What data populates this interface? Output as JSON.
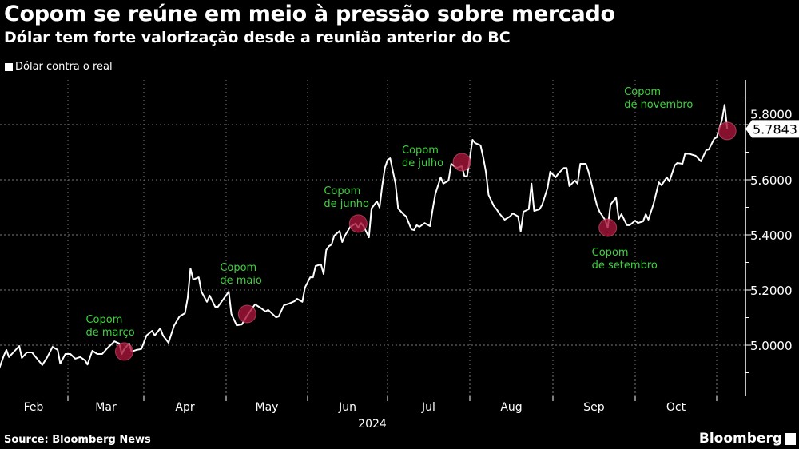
{
  "header": {
    "title": "Copom se reúne em meio à pressão sobre mercado",
    "subtitle": "Dólar tem forte valorização desde a reunião anterior do BC"
  },
  "footer": {
    "source": "Source: Bloomberg News",
    "logo": "Bloomberg"
  },
  "chart_data": {
    "type": "line",
    "title": "Copom se reúne em meio à pressão sobre mercado",
    "subtitle": "Dólar tem forte valorização desde a reunião anterior do BC",
    "xlabel": "2024",
    "ylabel": "",
    "ylim": [
      4.85,
      5.95
    ],
    "y_ticks": [
      "5.0000",
      "5.2000",
      "5.4000",
      "5.6000",
      "5.8000"
    ],
    "x_ticks": [
      "Feb",
      "Mar",
      "Apr",
      "May",
      "Jun",
      "Jul",
      "Aug",
      "Sep",
      "Oct"
    ],
    "x_year_label": "2024",
    "grid": true,
    "legend_position": "top-left",
    "last_value_label": "5.7843",
    "colors": {
      "line": "#ffffff",
      "annotation_text": "#3fd23f",
      "marker": "#a8153a",
      "background": "#000000"
    },
    "series": [
      {
        "name": "Dólar contra o real",
        "points": [
          [
            "2024-02-03",
            4.91
          ],
          [
            "2024-02-05",
            4.962
          ],
          [
            "2024-02-06",
            4.983
          ],
          [
            "2024-02-07",
            4.957
          ],
          [
            "2024-02-09",
            4.977
          ],
          [
            "2024-02-11",
            4.997
          ],
          [
            "2024-02-12",
            4.954
          ],
          [
            "2024-02-14",
            4.974
          ],
          [
            "2024-02-16",
            4.974
          ],
          [
            "2024-02-17",
            4.962
          ],
          [
            "2024-02-20",
            4.928
          ],
          [
            "2024-02-22",
            4.957
          ],
          [
            "2024-02-24",
            4.994
          ],
          [
            "2024-02-26",
            4.983
          ],
          [
            "2024-02-27",
            4.933
          ],
          [
            "2024-02-29",
            4.968
          ],
          [
            "2024-03-02",
            4.968
          ],
          [
            "2024-03-04",
            4.951
          ],
          [
            "2024-03-06",
            4.957
          ],
          [
            "2024-03-08",
            4.945
          ],
          [
            "2024-03-09",
            4.93
          ],
          [
            "2024-03-11",
            4.98
          ],
          [
            "2024-03-13",
            4.968
          ],
          [
            "2024-03-15",
            4.968
          ],
          [
            "2024-03-17",
            4.988
          ],
          [
            "2024-03-20",
            5.014
          ],
          [
            "2024-03-22",
            5.006
          ],
          [
            "2024-03-23",
            4.968
          ],
          [
            "2024-03-24",
            4.986
          ],
          [
            "2024-03-26",
            5.006
          ],
          [
            "2024-03-27",
            4.977
          ],
          [
            "2024-03-29",
            4.983
          ],
          [
            "2024-03-31",
            4.986
          ],
          [
            "2024-04-02",
            5.035
          ],
          [
            "2024-04-04",
            5.052
          ],
          [
            "2024-04-05",
            5.035
          ],
          [
            "2024-04-07",
            5.061
          ],
          [
            "2024-04-08",
            5.035
          ],
          [
            "2024-04-10",
            5.009
          ],
          [
            "2024-04-12",
            5.07
          ],
          [
            "2024-04-14",
            5.104
          ],
          [
            "2024-04-16",
            5.116
          ],
          [
            "2024-04-17",
            5.171
          ],
          [
            "2024-04-18",
            5.278
          ],
          [
            "2024-04-19",
            5.238
          ],
          [
            "2024-04-21",
            5.246
          ],
          [
            "2024-04-22",
            5.194
          ],
          [
            "2024-04-24",
            5.157
          ],
          [
            "2024-04-25",
            5.18
          ],
          [
            "2024-04-27",
            5.139
          ],
          [
            "2024-04-28",
            5.139
          ],
          [
            "2024-05-02",
            5.194
          ],
          [
            "2024-05-03",
            5.113
          ],
          [
            "2024-05-05",
            5.072
          ],
          [
            "2024-05-07",
            5.075
          ],
          [
            "2024-05-09",
            5.107
          ],
          [
            "2024-05-12",
            5.148
          ],
          [
            "2024-05-14",
            5.136
          ],
          [
            "2024-05-16",
            5.122
          ],
          [
            "2024-05-17",
            5.128
          ],
          [
            "2024-05-20",
            5.101
          ],
          [
            "2024-05-21",
            5.104
          ],
          [
            "2024-05-23",
            5.145
          ],
          [
            "2024-05-25",
            5.151
          ],
          [
            "2024-05-27",
            5.159
          ],
          [
            "2024-05-28",
            5.168
          ],
          [
            "2024-05-30",
            5.157
          ],
          [
            "2024-05-31",
            5.209
          ],
          [
            "2024-06-02",
            5.246
          ],
          [
            "2024-06-03",
            5.246
          ],
          [
            "2024-06-04",
            5.287
          ],
          [
            "2024-06-06",
            5.293
          ],
          [
            "2024-06-07",
            5.258
          ],
          [
            "2024-06-08",
            5.345
          ],
          [
            "2024-06-09",
            5.359
          ],
          [
            "2024-06-10",
            5.365
          ],
          [
            "2024-06-11",
            5.397
          ],
          [
            "2024-06-13",
            5.414
          ],
          [
            "2024-06-14",
            5.374
          ],
          [
            "2024-06-15",
            5.397
          ],
          [
            "2024-06-17",
            5.429
          ],
          [
            "2024-06-19",
            5.441
          ],
          [
            "2024-06-20",
            5.426
          ],
          [
            "2024-06-21",
            5.443
          ],
          [
            "2024-06-22",
            5.432
          ],
          [
            "2024-06-24",
            5.391
          ],
          [
            "2024-06-25",
            5.496
          ],
          [
            "2024-06-27",
            5.522
          ],
          [
            "2024-06-28",
            5.499
          ],
          [
            "2024-06-29",
            5.577
          ],
          [
            "2024-06-30",
            5.643
          ],
          [
            "2024-07-01",
            5.672
          ],
          [
            "2024-07-02",
            5.678
          ],
          [
            "2024-07-04",
            5.586
          ],
          [
            "2024-07-05",
            5.496
          ],
          [
            "2024-07-07",
            5.475
          ],
          [
            "2024-07-08",
            5.467
          ],
          [
            "2024-07-10",
            5.42
          ],
          [
            "2024-07-11",
            5.417
          ],
          [
            "2024-07-12",
            5.435
          ],
          [
            "2024-07-13",
            5.429
          ],
          [
            "2024-07-15",
            5.443
          ],
          [
            "2024-07-17",
            5.432
          ],
          [
            "2024-07-18",
            5.493
          ],
          [
            "2024-07-19",
            5.548
          ],
          [
            "2024-07-21",
            5.609
          ],
          [
            "2024-07-22",
            5.586
          ],
          [
            "2024-07-24",
            5.597
          ],
          [
            "2024-07-25",
            5.658
          ],
          [
            "2024-07-27",
            5.643
          ],
          [
            "2024-07-29",
            5.649
          ],
          [
            "2024-07-30",
            5.612
          ],
          [
            "2024-07-31",
            5.614
          ],
          [
            "2024-08-02",
            5.745
          ],
          [
            "2024-08-03",
            5.733
          ],
          [
            "2024-08-05",
            5.725
          ],
          [
            "2024-08-06",
            5.681
          ],
          [
            "2024-08-07",
            5.629
          ],
          [
            "2024-08-08",
            5.545
          ],
          [
            "2024-08-10",
            5.504
          ],
          [
            "2024-08-11",
            5.493
          ],
          [
            "2024-08-12",
            5.478
          ],
          [
            "2024-08-14",
            5.455
          ],
          [
            "2024-08-16",
            5.467
          ],
          [
            "2024-08-17",
            5.478
          ],
          [
            "2024-08-19",
            5.467
          ],
          [
            "2024-08-20",
            5.412
          ],
          [
            "2024-08-21",
            5.484
          ],
          [
            "2024-08-23",
            5.493
          ],
          [
            "2024-08-24",
            5.586
          ],
          [
            "2024-08-25",
            5.487
          ],
          [
            "2024-08-27",
            5.493
          ],
          [
            "2024-08-28",
            5.51
          ],
          [
            "2024-08-30",
            5.571
          ],
          [
            "2024-08-31",
            5.629
          ],
          [
            "2024-09-02",
            5.609
          ],
          [
            "2024-09-03",
            5.623
          ],
          [
            "2024-09-05",
            5.643
          ],
          [
            "2024-09-06",
            5.643
          ],
          [
            "2024-09-07",
            5.577
          ],
          [
            "2024-09-09",
            5.597
          ],
          [
            "2024-09-10",
            5.586
          ],
          [
            "2024-09-11",
            5.658
          ],
          [
            "2024-09-13",
            5.658
          ],
          [
            "2024-09-14",
            5.629
          ],
          [
            "2024-09-17",
            5.51
          ],
          [
            "2024-09-18",
            5.484
          ],
          [
            "2024-09-20",
            5.455
          ],
          [
            "2024-09-21",
            5.426
          ],
          [
            "2024-09-22",
            5.51
          ],
          [
            "2024-09-24",
            5.536
          ],
          [
            "2024-09-25",
            5.458
          ],
          [
            "2024-09-26",
            5.475
          ],
          [
            "2024-09-28",
            5.435
          ],
          [
            "2024-09-29",
            5.435
          ],
          [
            "2024-10-01",
            5.452
          ],
          [
            "2024-10-02",
            5.443
          ],
          [
            "2024-10-04",
            5.449
          ],
          [
            "2024-10-05",
            5.475
          ],
          [
            "2024-10-06",
            5.455
          ],
          [
            "2024-10-08",
            5.513
          ],
          [
            "2024-10-10",
            5.591
          ],
          [
            "2024-10-11",
            5.58
          ],
          [
            "2024-10-13",
            5.609
          ],
          [
            "2024-10-14",
            5.594
          ],
          [
            "2024-10-16",
            5.652
          ],
          [
            "2024-10-17",
            5.661
          ],
          [
            "2024-10-19",
            5.658
          ],
          [
            "2024-10-20",
            5.696
          ],
          [
            "2024-10-22",
            5.693
          ],
          [
            "2024-10-24",
            5.687
          ],
          [
            "2024-10-26",
            5.667
          ],
          [
            "2024-10-28",
            5.707
          ],
          [
            "2024-10-29",
            5.71
          ],
          [
            "2024-10-31",
            5.748
          ],
          [
            "2024-11-01",
            5.754
          ],
          [
            "2024-11-03",
            5.817
          ],
          [
            "2024-11-04",
            5.872
          ],
          [
            "2024-11-05",
            5.7843
          ]
        ]
      }
    ],
    "annotations": [
      {
        "line1": "Copom",
        "line2": "de março",
        "date": "2024-03-24",
        "value": 4.977,
        "label_side": "above"
      },
      {
        "line1": "Copom",
        "line2": "de maio",
        "date": "2024-05-09",
        "value": 5.113,
        "label_side": "above"
      },
      {
        "line1": "Copom",
        "line2": "de junho",
        "date": "2024-06-20",
        "value": 5.441,
        "label_side": "above"
      },
      {
        "line1": "Copom",
        "line2": "de julho",
        "date": "2024-07-29",
        "value": 5.664,
        "label_side": "left"
      },
      {
        "line1": "Copom",
        "line2": "de setembro",
        "date": "2024-09-21",
        "value": 5.426,
        "label_side": "below"
      },
      {
        "line1": "Copom",
        "line2": "de novembro",
        "date": "2024-11-05",
        "value": 5.777,
        "label_side": "above-left"
      }
    ]
  }
}
